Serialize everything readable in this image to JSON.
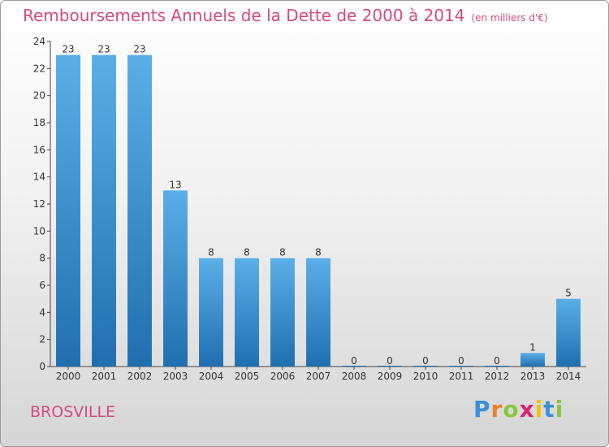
{
  "chart_data": {
    "type": "bar",
    "title": "Remboursements Annuels de la Dette de 2000 à 2014",
    "unit": "(en milliers d'€)",
    "categories": [
      "2000",
      "2001",
      "2002",
      "2003",
      "2004",
      "2005",
      "2006",
      "2007",
      "2008",
      "2009",
      "2010",
      "2011",
      "2012",
      "2013",
      "2014"
    ],
    "values": [
      23,
      23,
      23,
      13,
      8,
      8,
      8,
      8,
      0,
      0,
      0,
      0,
      0,
      1,
      5
    ],
    "ylim": [
      0,
      24
    ],
    "yticks": [
      0,
      2,
      4,
      6,
      8,
      10,
      12,
      14,
      16,
      18,
      20,
      22,
      24
    ],
    "xlabel": "",
    "ylabel": "",
    "grid": false,
    "bar_color_top": "#5aafe8",
    "bar_color_bottom": "#1f6fb0"
  },
  "commune": "BROSVILLE",
  "brand": {
    "letters": [
      "P",
      "r",
      "o",
      "x",
      "i",
      "t",
      "i"
    ],
    "colors": [
      "#3a8fd6",
      "#e8842c",
      "#8cc63f",
      "#d6246e",
      "#f2c300",
      "#3a8fd6",
      "#8cc63f"
    ]
  },
  "colors": {
    "accent": "#d64a7e"
  }
}
